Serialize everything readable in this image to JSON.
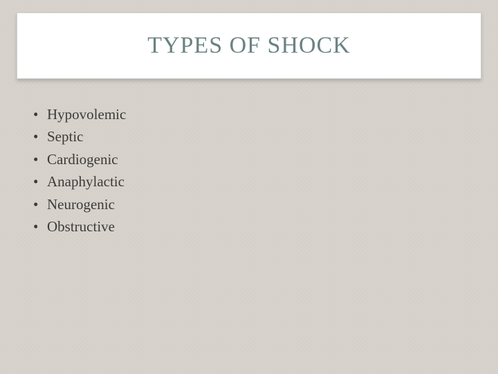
{
  "slide": {
    "title": "TYPES OF SHOCK",
    "bullet_char": "•",
    "items": [
      "Hypovolemic",
      "Septic",
      "Cardiogenic",
      "Anaphylactic",
      "Neurogenic",
      "Obstructive"
    ],
    "style": {
      "background_color": "#d7d2cb",
      "title_color": "#6b8282",
      "title_fontsize": 34,
      "body_color": "#3b3b3b",
      "body_fontsize": 21,
      "title_box_bg": "#ffffff",
      "title_box_border": "#d0d0d0"
    }
  }
}
